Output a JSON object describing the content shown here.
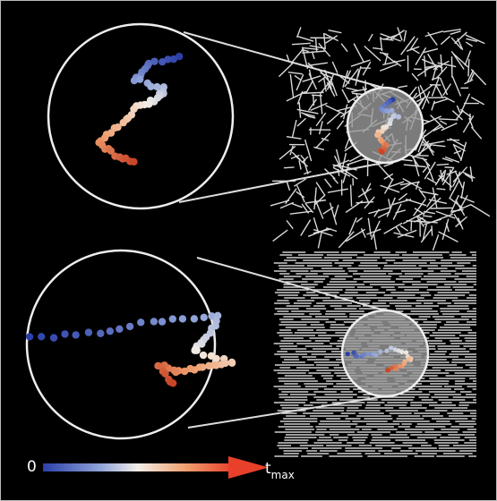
{
  "colorbar": {
    "min_label": "0",
    "max_label": "t",
    "max_label_subscript": "max"
  }
}
